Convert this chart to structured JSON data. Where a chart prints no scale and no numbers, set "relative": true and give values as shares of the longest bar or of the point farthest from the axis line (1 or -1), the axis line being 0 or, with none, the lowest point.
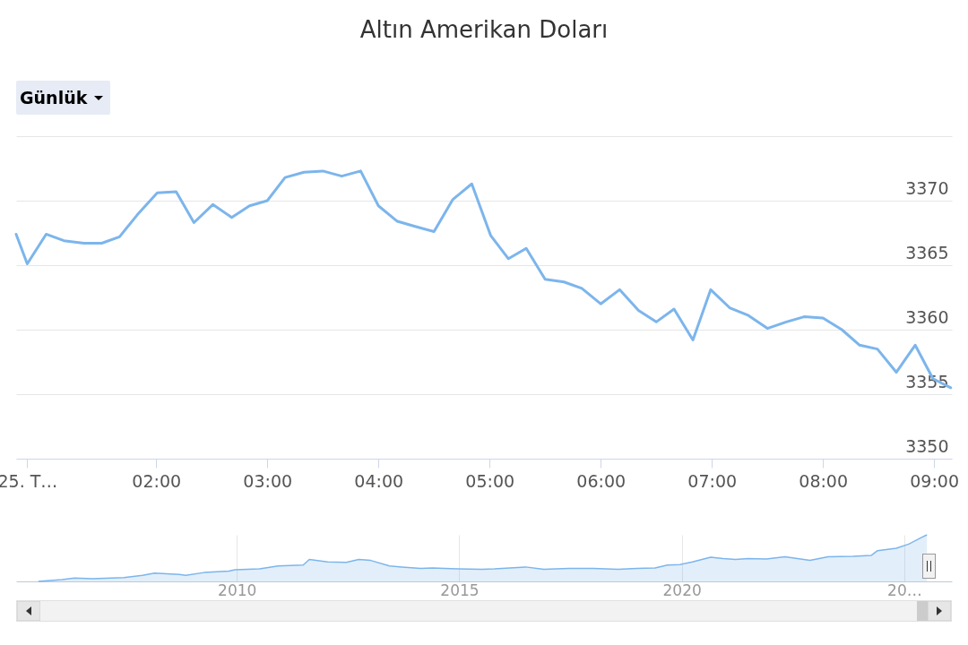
{
  "chart_data": [
    {
      "type": "line",
      "title": "Altın Amerikan Doları",
      "annotations": [
        "Günlük"
      ],
      "x": [
        0.74,
        0.84,
        1.01,
        1.17,
        1.35,
        1.51,
        1.67,
        1.83,
        2.01,
        2.18,
        2.34,
        2.51,
        2.68,
        2.84,
        3.0,
        3.16,
        3.33,
        3.5,
        3.67,
        3.84,
        4.0,
        4.17,
        4.33,
        4.5,
        4.67,
        4.84,
        5.01,
        5.17,
        5.33,
        5.5,
        5.67,
        5.83,
        6.0,
        6.17,
        6.34,
        6.5,
        6.66,
        6.83,
        6.99,
        7.16,
        7.33,
        7.5,
        7.67,
        7.83,
        8.0,
        8.17,
        8.33,
        8.49,
        8.66,
        8.83,
        8.99,
        9.15
      ],
      "series": [
        {
          "color": "#7cb5ec",
          "values": [
            3367.4,
            3365.1,
            3367.4,
            3366.9,
            3366.7,
            3366.7,
            3367.2,
            3368.9,
            3370.6,
            3370.7,
            3368.3,
            3369.7,
            3368.7,
            3369.6,
            3370.0,
            3371.8,
            3372.2,
            3372.3,
            3371.9,
            3372.3,
            3369.6,
            3368.4,
            3368.0,
            3367.6,
            3370.1,
            3371.3,
            3367.3,
            3365.5,
            3366.3,
            3363.9,
            3363.7,
            3363.2,
            3362.0,
            3363.1,
            3361.5,
            3360.6,
            3361.6,
            3359.2,
            3363.1,
            3361.7,
            3361.1,
            3360.1,
            3360.6,
            3361.0,
            3360.9,
            3360.0,
            3358.8,
            3358.5,
            3356.7,
            3358.8,
            3356.2,
            3355.5
          ]
        }
      ],
      "xlim": [
        0.74,
        9.16
      ],
      "xticks": [
        {
          "value": 0.84,
          "label": "25. T…"
        },
        {
          "value": 2,
          "label": "02:00"
        },
        {
          "value": 3,
          "label": "03:00"
        },
        {
          "value": 4,
          "label": "04:00"
        },
        {
          "value": 5,
          "label": "05:00"
        },
        {
          "value": 6,
          "label": "06:00"
        },
        {
          "value": 7,
          "label": "07:00"
        },
        {
          "value": 8,
          "label": "08:00"
        },
        {
          "value": 9,
          "label": "09:00"
        }
      ],
      "ylim": [
        3350,
        3375
      ],
      "yticks": [
        3350,
        3355,
        3360,
        3365,
        3370,
        {
          "value": 3375,
          "label": null
        }
      ],
      "grid": "y",
      "marker": "none",
      "line_style": "solid"
    },
    {
      "type": "area",
      "relative": true,
      "x": [
        2005.54,
        2006.07,
        2006.35,
        2006.76,
        2007.46,
        2007.88,
        2008.15,
        2008.71,
        2008.85,
        2009.26,
        2009.82,
        2009.96,
        2010.51,
        2010.93,
        2011.49,
        2011.63,
        2012.04,
        2012.46,
        2012.74,
        2013.01,
        2013.43,
        2013.71,
        2014.13,
        2014.4,
        2014.96,
        2015.51,
        2015.79,
        2016.49,
        2016.9,
        2017.46,
        2018.01,
        2018.57,
        2018.99,
        2019.4,
        2019.68,
        2019.96,
        2020.24,
        2020.65,
        2020.93,
        2021.21,
        2021.49,
        2021.9,
        2022.32,
        2022.74,
        2022.88,
        2023.29,
        2023.85,
        2024.26,
        2024.4,
        2024.82,
        2025.1,
        2025.38,
        2025.51
      ],
      "series": [
        {
          "color": "#7cb5ec",
          "values": [
            0,
            0.04,
            0.07,
            0.06,
            0.08,
            0.13,
            0.18,
            0.15,
            0.13,
            0.19,
            0.22,
            0.25,
            0.27,
            0.33,
            0.35,
            0.47,
            0.42,
            0.41,
            0.47,
            0.45,
            0.33,
            0.31,
            0.28,
            0.29,
            0.27,
            0.26,
            0.27,
            0.31,
            0.26,
            0.28,
            0.28,
            0.26,
            0.28,
            0.29,
            0.35,
            0.36,
            0.42,
            0.52,
            0.49,
            0.47,
            0.49,
            0.48,
            0.53,
            0.47,
            0.45,
            0.53,
            0.54,
            0.56,
            0.66,
            0.71,
            0.8,
            0.94,
            1.0
          ]
        }
      ],
      "xlim": [
        2005.04,
        2026.07
      ],
      "xticks": [
        2010,
        2015,
        2020,
        {
          "value": 2025,
          "label": "20…"
        }
      ],
      "grid": "x"
    }
  ]
}
